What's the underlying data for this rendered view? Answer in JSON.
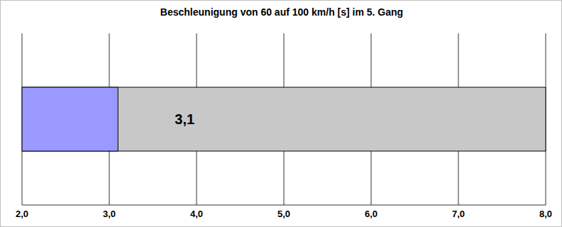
{
  "chart_data": {
    "type": "bar",
    "title": "Beschleunigung von 60 auf 100 km/h [s] im 5. Gang",
    "categories": [
      null
    ],
    "values": [
      3.1
    ],
    "value_labels": [
      "3,1"
    ],
    "color": "#9999ff",
    "orientation": "horizontal",
    "xlim": [
      2,
      8
    ],
    "xticks": [
      {
        "value": 2,
        "label": "2,0"
      },
      {
        "value": 3,
        "label": "3,0"
      },
      {
        "value": 4,
        "label": "4,0"
      },
      {
        "value": 5,
        "label": "5,0"
      },
      {
        "value": 6,
        "label": "6,0"
      },
      {
        "value": 7,
        "label": "7,0"
      },
      {
        "value": 8,
        "label": "8,0"
      }
    ],
    "grid": true,
    "data_labels": true,
    "tick_labels": "x"
  }
}
